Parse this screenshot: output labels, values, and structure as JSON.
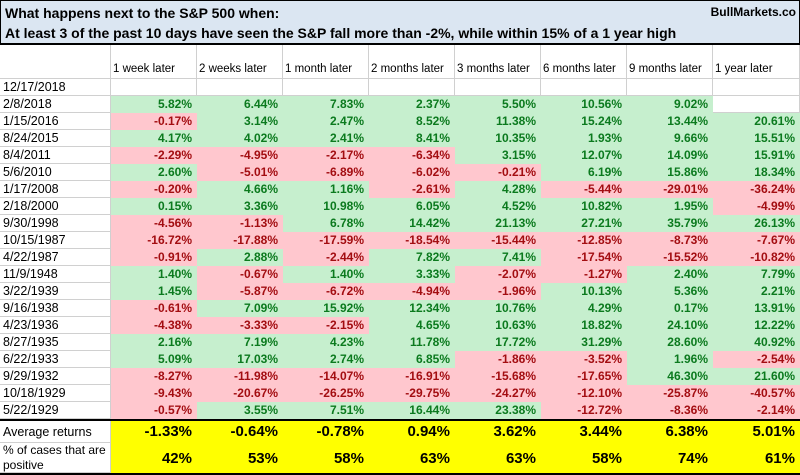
{
  "header": {
    "title": "What happens next to the S&P 500 when:",
    "subtitle": "At least 3 of the past 10 days have seen the S&P fall more than -2%, while within 15% of a 1 year high",
    "brand": "BullMarkets.co"
  },
  "table": {
    "columns": [
      "1 week later",
      "2 weeks later",
      "1 month later",
      "2 months later",
      "3 months later",
      "6 months later",
      "9 months later",
      "1 year later"
    ],
    "rows": [
      {
        "date": "12/17/2018",
        "values": [
          "",
          "",
          "",
          "",
          "",
          "",
          "",
          ""
        ]
      },
      {
        "date": "2/8/2018",
        "values": [
          "5.82%",
          "6.44%",
          "7.83%",
          "2.37%",
          "5.50%",
          "10.56%",
          "9.02%",
          ""
        ]
      },
      {
        "date": "1/15/2016",
        "values": [
          "-0.17%",
          "3.14%",
          "2.47%",
          "8.52%",
          "11.38%",
          "15.24%",
          "13.44%",
          "20.61%"
        ]
      },
      {
        "date": "8/24/2015",
        "values": [
          "4.17%",
          "4.02%",
          "2.41%",
          "8.41%",
          "10.35%",
          "1.93%",
          "9.66%",
          "15.51%"
        ]
      },
      {
        "date": "8/4/2011",
        "values": [
          "-2.29%",
          "-4.95%",
          "-2.17%",
          "-6.34%",
          "3.15%",
          "12.07%",
          "14.09%",
          "15.91%"
        ]
      },
      {
        "date": "5/6/2010",
        "values": [
          "2.60%",
          "-5.01%",
          "-6.89%",
          "-6.02%",
          "-0.21%",
          "6.19%",
          "15.86%",
          "18.34%"
        ]
      },
      {
        "date": "1/17/2008",
        "values": [
          "-0.20%",
          "4.66%",
          "1.16%",
          "-2.61%",
          "4.28%",
          "-5.44%",
          "-29.01%",
          "-36.24%"
        ]
      },
      {
        "date": "2/18/2000",
        "values": [
          "0.15%",
          "3.36%",
          "10.98%",
          "6.05%",
          "4.52%",
          "10.82%",
          "1.95%",
          "-4.99%"
        ]
      },
      {
        "date": "9/30/1998",
        "values": [
          "-4.56%",
          "-1.13%",
          "6.78%",
          "14.42%",
          "21.13%",
          "27.21%",
          "35.79%",
          "26.13%"
        ]
      },
      {
        "date": "10/15/1987",
        "values": [
          "-16.72%",
          "-17.88%",
          "-17.59%",
          "-18.54%",
          "-15.44%",
          "-12.85%",
          "-8.73%",
          "-7.67%"
        ]
      },
      {
        "date": "4/22/1987",
        "values": [
          "-0.91%",
          "2.88%",
          "-2.44%",
          "7.82%",
          "7.41%",
          "-17.54%",
          "-15.52%",
          "-10.82%"
        ]
      },
      {
        "date": "11/9/1948",
        "values": [
          "1.40%",
          "-0.67%",
          "1.40%",
          "3.33%",
          "-2.07%",
          "-1.27%",
          "2.40%",
          "7.79%"
        ]
      },
      {
        "date": "3/22/1939",
        "values": [
          "1.45%",
          "-5.87%",
          "-6.72%",
          "-4.94%",
          "-1.96%",
          "10.13%",
          "5.36%",
          "2.21%"
        ]
      },
      {
        "date": "9/16/1938",
        "values": [
          "-0.61%",
          "7.09%",
          "15.92%",
          "12.34%",
          "10.76%",
          "4.29%",
          "0.17%",
          "13.91%"
        ]
      },
      {
        "date": "4/23/1936",
        "values": [
          "-4.38%",
          "-3.33%",
          "-2.15%",
          "4.65%",
          "10.63%",
          "18.82%",
          "24.10%",
          "12.22%"
        ]
      },
      {
        "date": "8/27/1935",
        "values": [
          "2.16%",
          "7.19%",
          "4.23%",
          "11.78%",
          "17.72%",
          "31.29%",
          "28.60%",
          "40.92%"
        ]
      },
      {
        "date": "6/22/1933",
        "values": [
          "5.09%",
          "17.03%",
          "2.74%",
          "6.85%",
          "-1.86%",
          "-3.52%",
          "1.96%",
          "-2.54%"
        ]
      },
      {
        "date": "9/29/1932",
        "values": [
          "-8.27%",
          "-11.98%",
          "-14.07%",
          "-16.91%",
          "-15.68%",
          "-17.65%",
          "46.30%",
          "21.60%"
        ]
      },
      {
        "date": "10/18/1929",
        "values": [
          "-9.43%",
          "-20.67%",
          "-26.25%",
          "-29.75%",
          "-24.27%",
          "-12.10%",
          "-25.87%",
          "-40.57%"
        ]
      },
      {
        "date": "5/22/1929",
        "values": [
          "-0.57%",
          "3.55%",
          "7.51%",
          "16.44%",
          "23.38%",
          "-12.72%",
          "-8.36%",
          "-2.14%"
        ]
      }
    ],
    "summary": {
      "average_label": "Average returns",
      "average_values": [
        "-1.33%",
        "-0.64%",
        "-0.78%",
        "0.94%",
        "3.62%",
        "3.44%",
        "6.38%",
        "5.01%"
      ],
      "percent_positive_label": "% of cases that are positive",
      "percent_positive_values": [
        "42%",
        "53%",
        "58%",
        "63%",
        "63%",
        "58%",
        "74%",
        "61%"
      ]
    }
  },
  "colors": {
    "title_bg": "#dbe6f2",
    "grid_line": "#d0d0d0",
    "positive_bg": "#c6efce",
    "positive_text": "#0b7a1e",
    "negative_bg": "#ffc7ce",
    "negative_text": "#a30d11",
    "summary_bg": "#ffff00",
    "border": "#000000"
  }
}
